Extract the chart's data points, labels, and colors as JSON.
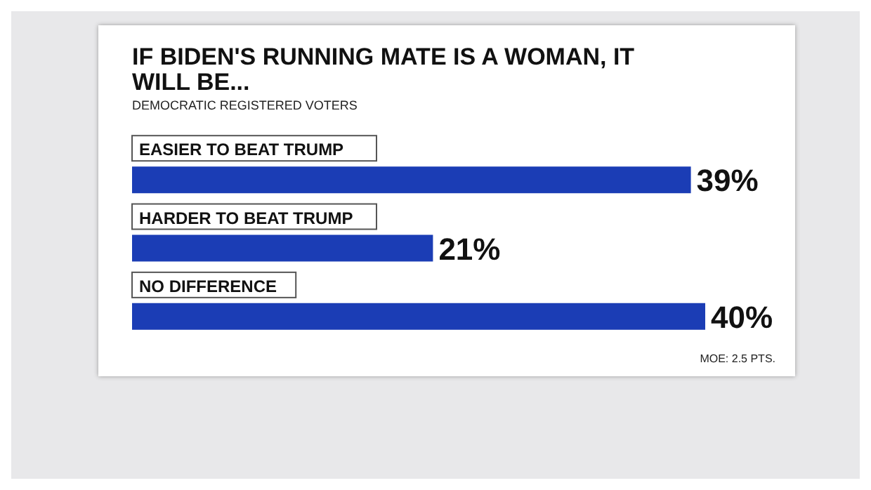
{
  "chart_data": {
    "type": "bar",
    "orientation": "horizontal",
    "title": "IF BIDEN'S RUNNING MATE IS A WOMAN, IT WILL BE...",
    "subtitle": "DEMOCRATIC REGISTERED VOTERS",
    "categories": [
      "EASIER TO BEAT TRUMP",
      "HARDER TO BEAT TRUMP",
      "NO DIFFERENCE"
    ],
    "values": [
      39,
      21,
      40
    ],
    "value_labels": [
      "39%",
      "21%",
      "40%"
    ],
    "color": "#1b3db5",
    "annotations": [
      "MOE: 2.5 PTS."
    ],
    "grid": false
  }
}
